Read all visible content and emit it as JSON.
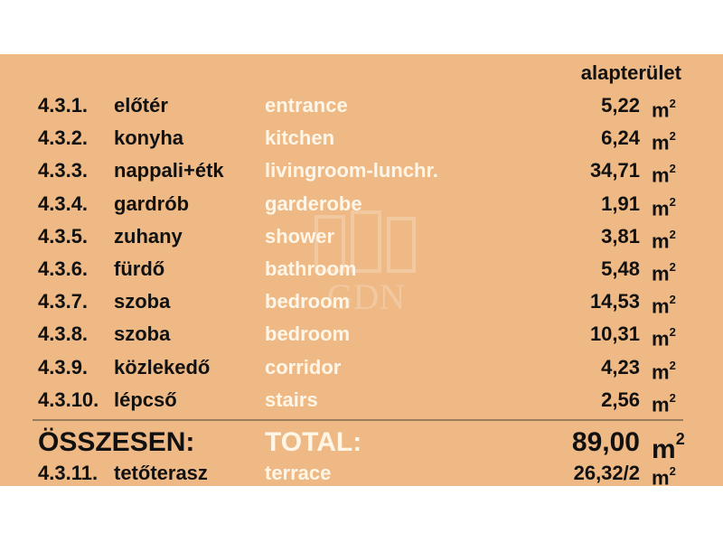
{
  "header": "alapterület",
  "rows": [
    {
      "num": "4.3.1.",
      "hu": "előtér",
      "en": "entrance",
      "value": "5,22",
      "unit": "m",
      "sup": "2"
    },
    {
      "num": "4.3.2.",
      "hu": "konyha",
      "en": "kitchen",
      "value": "6,24",
      "unit": "m",
      "sup": "2"
    },
    {
      "num": "4.3.3.",
      "hu": "nappali+étk",
      "en": "livingroom-lunchr.",
      "value": "34,71",
      "unit": "m",
      "sup": "2"
    },
    {
      "num": "4.3.4.",
      "hu": "gardrób",
      "en": "garderobe",
      "value": "1,91",
      "unit": "m",
      "sup": "2"
    },
    {
      "num": "4.3.5.",
      "hu": "zuhany",
      "en": "shower",
      "value": "3,81",
      "unit": "m",
      "sup": "2"
    },
    {
      "num": "4.3.6.",
      "hu": "fürdő",
      "en": "bathroom",
      "value": "5,48",
      "unit": "m",
      "sup": "2"
    },
    {
      "num": "4.3.7.",
      "hu": "szoba",
      "en": "bedroom",
      "value": "14,53",
      "unit": "m",
      "sup": "2"
    },
    {
      "num": "4.3.8.",
      "hu": "szoba",
      "en": "bedroom",
      "value": "10,31",
      "unit": "m",
      "sup": "2"
    },
    {
      "num": "4.3.9.",
      "hu": "közlekedő",
      "en": "corridor",
      "value": "4,23",
      "unit": "m",
      "sup": "2"
    },
    {
      "num": "4.3.10.",
      "hu": "lépcső",
      "en": "stairs",
      "value": "2,56",
      "unit": "m",
      "sup": "2"
    }
  ],
  "total": {
    "hu": "ÖSSZESEN:",
    "en": "TOTAL:",
    "value": "89,00",
    "unit": "m",
    "sup": "2"
  },
  "extra": {
    "num": "4.3.11.",
    "hu": "tetőterasz",
    "en": "terrace",
    "value": "26,32/2",
    "unit": "m",
    "sup": "2"
  },
  "watermark": "GDN",
  "colors": {
    "panel": "#eeb984",
    "english_text": "#fff6e8",
    "text": "#111111"
  }
}
